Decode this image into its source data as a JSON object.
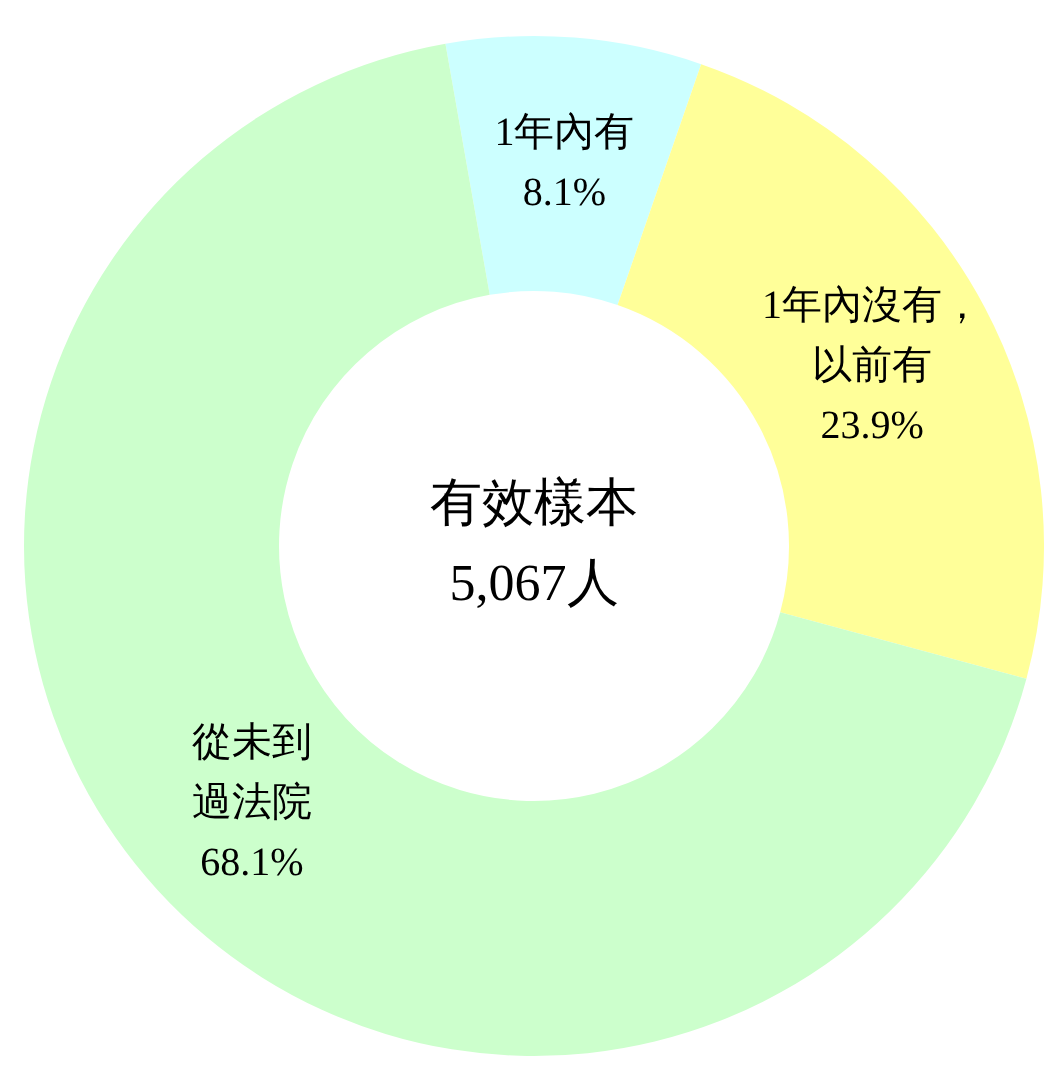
{
  "chart_data": {
    "type": "donut",
    "categories": [
      "1年內有",
      "1年內沒有，以前有",
      "從未到過法院"
    ],
    "values": [
      8.1,
      23.9,
      68.1
    ],
    "value_labels": [
      "8.1%",
      "23.9%",
      "68.1%"
    ],
    "colors": [
      "#ccffff",
      "#ffff99",
      "#ccffcc"
    ],
    "annotations": [
      "有效樣本\n5,067人"
    ],
    "legend": false
  }
}
